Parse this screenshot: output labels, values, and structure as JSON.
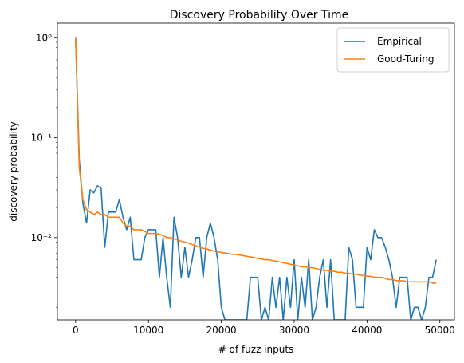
{
  "chart_data": {
    "type": "line",
    "title": "Discovery Probability Over Time",
    "xlabel": "# of fuzz inputs",
    "ylabel": "discovery probability",
    "xlim": [
      -2500,
      52000
    ],
    "ylim": [
      0.0015,
      1.4
    ],
    "yscale": "log",
    "grid": false,
    "legend_position": "top-right",
    "x_ticks": [
      0,
      10000,
      20000,
      30000,
      40000,
      50000
    ],
    "x_tick_labels": [
      "0",
      "10000",
      "20000",
      "30000",
      "40000",
      "50000"
    ],
    "y_ticks": [
      0.01,
      0.1,
      1
    ],
    "y_tick_labels": [
      "10⁻²",
      "10⁻¹",
      "10⁰"
    ],
    "series": [
      {
        "name": "Empirical",
        "color": "#1f77b4",
        "points": [
          [
            0,
            1.0
          ],
          [
            500,
            0.06
          ],
          [
            1000,
            0.022
          ],
          [
            1500,
            0.014
          ],
          [
            2000,
            0.03
          ],
          [
            2500,
            0.028
          ],
          [
            3000,
            0.033
          ],
          [
            3500,
            0.031
          ],
          [
            4000,
            0.008
          ],
          [
            4500,
            0.018
          ],
          [
            5000,
            0.018
          ],
          [
            5500,
            0.018
          ],
          [
            6000,
            0.024
          ],
          [
            6500,
            0.016
          ],
          [
            7000,
            0.012
          ],
          [
            7500,
            0.016
          ],
          [
            8000,
            0.006
          ],
          [
            8500,
            0.006
          ],
          [
            9000,
            0.006
          ],
          [
            9500,
            0.01
          ],
          [
            10000,
            0.012
          ],
          [
            10500,
            0.012
          ],
          [
            11000,
            0.012
          ],
          [
            11500,
            0.004
          ],
          [
            12000,
            0.01
          ],
          [
            12500,
            0.004
          ],
          [
            13000,
            0.002
          ],
          [
            13500,
            0.016
          ],
          [
            14000,
            0.01
          ],
          [
            14500,
            0.004
          ],
          [
            15000,
            0.008
          ],
          [
            15500,
            0.004
          ],
          [
            16000,
            0.006
          ],
          [
            16500,
            0.01
          ],
          [
            17000,
            0.01
          ],
          [
            17500,
            0.004
          ],
          [
            18000,
            0.01
          ],
          [
            18500,
            0.014
          ],
          [
            19000,
            0.01
          ],
          [
            19500,
            0.006
          ],
          [
            20000,
            0.002
          ],
          [
            20500,
            0.0015
          ],
          [
            21000,
            0.0015
          ],
          [
            21500,
            0.0015
          ],
          [
            22000,
            0.0015
          ],
          [
            22500,
            0.0015
          ],
          [
            23000,
            0.0015
          ],
          [
            23500,
            0.0015
          ],
          [
            24000,
            0.004
          ],
          [
            24500,
            0.004
          ],
          [
            25000,
            0.004
          ],
          [
            25500,
            0.0015
          ],
          [
            26000,
            0.002
          ],
          [
            26500,
            0.0015
          ],
          [
            27000,
            0.004
          ],
          [
            27500,
            0.002
          ],
          [
            28000,
            0.004
          ],
          [
            28500,
            0.0015
          ],
          [
            29000,
            0.004
          ],
          [
            29500,
            0.002
          ],
          [
            30000,
            0.006
          ],
          [
            30500,
            0.0015
          ],
          [
            31000,
            0.004
          ],
          [
            31500,
            0.002
          ],
          [
            32000,
            0.006
          ],
          [
            32500,
            0.0015
          ],
          [
            33000,
            0.002
          ],
          [
            33500,
            0.004
          ],
          [
            34000,
            0.006
          ],
          [
            34500,
            0.002
          ],
          [
            35000,
            0.006
          ],
          [
            35500,
            0.0015
          ],
          [
            36000,
            0.0015
          ],
          [
            36500,
            0.0015
          ],
          [
            37000,
            0.0015
          ],
          [
            37500,
            0.008
          ],
          [
            38000,
            0.006
          ],
          [
            38500,
            0.002
          ],
          [
            39000,
            0.002
          ],
          [
            39500,
            0.002
          ],
          [
            40000,
            0.008
          ],
          [
            40500,
            0.006
          ],
          [
            41000,
            0.012
          ],
          [
            41500,
            0.01
          ],
          [
            42000,
            0.01
          ],
          [
            42500,
            0.008
          ],
          [
            43000,
            0.006
          ],
          [
            43500,
            0.004
          ],
          [
            44000,
            0.002
          ],
          [
            44500,
            0.004
          ],
          [
            45000,
            0.004
          ],
          [
            45500,
            0.004
          ],
          [
            46000,
            0.0015
          ],
          [
            46500,
            0.002
          ],
          [
            47000,
            0.002
          ],
          [
            47500,
            0.0015
          ],
          [
            48000,
            0.002
          ],
          [
            48500,
            0.004
          ],
          [
            49000,
            0.004
          ],
          [
            49500,
            0.006
          ]
        ]
      },
      {
        "name": "Good-Turing",
        "color": "#ff7f0e",
        "points": [
          [
            0,
            1.0
          ],
          [
            500,
            0.05
          ],
          [
            1000,
            0.024
          ],
          [
            1500,
            0.019
          ],
          [
            2000,
            0.018
          ],
          [
            2500,
            0.017
          ],
          [
            3000,
            0.018
          ],
          [
            3500,
            0.017
          ],
          [
            4000,
            0.017
          ],
          [
            4500,
            0.016
          ],
          [
            5000,
            0.016
          ],
          [
            5500,
            0.016
          ],
          [
            6000,
            0.016
          ],
          [
            6500,
            0.014
          ],
          [
            7000,
            0.013
          ],
          [
            7500,
            0.013
          ],
          [
            8000,
            0.012
          ],
          [
            8500,
            0.012
          ],
          [
            9000,
            0.012
          ],
          [
            9500,
            0.0115
          ],
          [
            10000,
            0.011
          ],
          [
            10500,
            0.011
          ],
          [
            11000,
            0.011
          ],
          [
            11500,
            0.0108
          ],
          [
            12000,
            0.0105
          ],
          [
            12500,
            0.01
          ],
          [
            13000,
            0.01
          ],
          [
            13500,
            0.0097
          ],
          [
            14000,
            0.0095
          ],
          [
            14500,
            0.0092
          ],
          [
            15000,
            0.009
          ],
          [
            15500,
            0.0088
          ],
          [
            16000,
            0.0085
          ],
          [
            16500,
            0.0083
          ],
          [
            17000,
            0.008
          ],
          [
            17500,
            0.0078
          ],
          [
            18000,
            0.0077
          ],
          [
            18500,
            0.0075
          ],
          [
            19000,
            0.0073
          ],
          [
            19500,
            0.0072
          ],
          [
            20000,
            0.0071
          ],
          [
            20500,
            0.007
          ],
          [
            21000,
            0.0069
          ],
          [
            21500,
            0.0068
          ],
          [
            22000,
            0.0068
          ],
          [
            22500,
            0.0067
          ],
          [
            23000,
            0.0066
          ],
          [
            23500,
            0.0065
          ],
          [
            24000,
            0.0064
          ],
          [
            24500,
            0.0063
          ],
          [
            25000,
            0.0062
          ],
          [
            25500,
            0.0061
          ],
          [
            26000,
            0.006
          ],
          [
            26500,
            0.006
          ],
          [
            27000,
            0.0059
          ],
          [
            27500,
            0.0058
          ],
          [
            28000,
            0.0057
          ],
          [
            28500,
            0.0056
          ],
          [
            29000,
            0.0055
          ],
          [
            29500,
            0.0054
          ],
          [
            30000,
            0.0053
          ],
          [
            30500,
            0.0052
          ],
          [
            31000,
            0.0051
          ],
          [
            31500,
            0.0051
          ],
          [
            32000,
            0.005
          ],
          [
            32500,
            0.005
          ],
          [
            33000,
            0.0049
          ],
          [
            33500,
            0.0048
          ],
          [
            34000,
            0.0047
          ],
          [
            34500,
            0.0047
          ],
          [
            35000,
            0.0046
          ],
          [
            35500,
            0.0046
          ],
          [
            36000,
            0.0045
          ],
          [
            36500,
            0.0045
          ],
          [
            37000,
            0.0044
          ],
          [
            37500,
            0.0044
          ],
          [
            38000,
            0.0043
          ],
          [
            38500,
            0.0043
          ],
          [
            39000,
            0.0042
          ],
          [
            39500,
            0.0042
          ],
          [
            40000,
            0.0041
          ],
          [
            40500,
            0.0041
          ],
          [
            41000,
            0.004
          ],
          [
            41500,
            0.004
          ],
          [
            42000,
            0.004
          ],
          [
            42500,
            0.0039
          ],
          [
            43000,
            0.0038
          ],
          [
            43500,
            0.0038
          ],
          [
            44000,
            0.0037
          ],
          [
            44500,
            0.0037
          ],
          [
            45000,
            0.0037
          ],
          [
            45500,
            0.0036
          ],
          [
            46000,
            0.0036
          ],
          [
            46500,
            0.0036
          ],
          [
            47000,
            0.0036
          ],
          [
            47500,
            0.0036
          ],
          [
            48000,
            0.0036
          ],
          [
            48500,
            0.0036
          ],
          [
            49000,
            0.0035
          ],
          [
            49500,
            0.0035
          ]
        ]
      }
    ]
  }
}
